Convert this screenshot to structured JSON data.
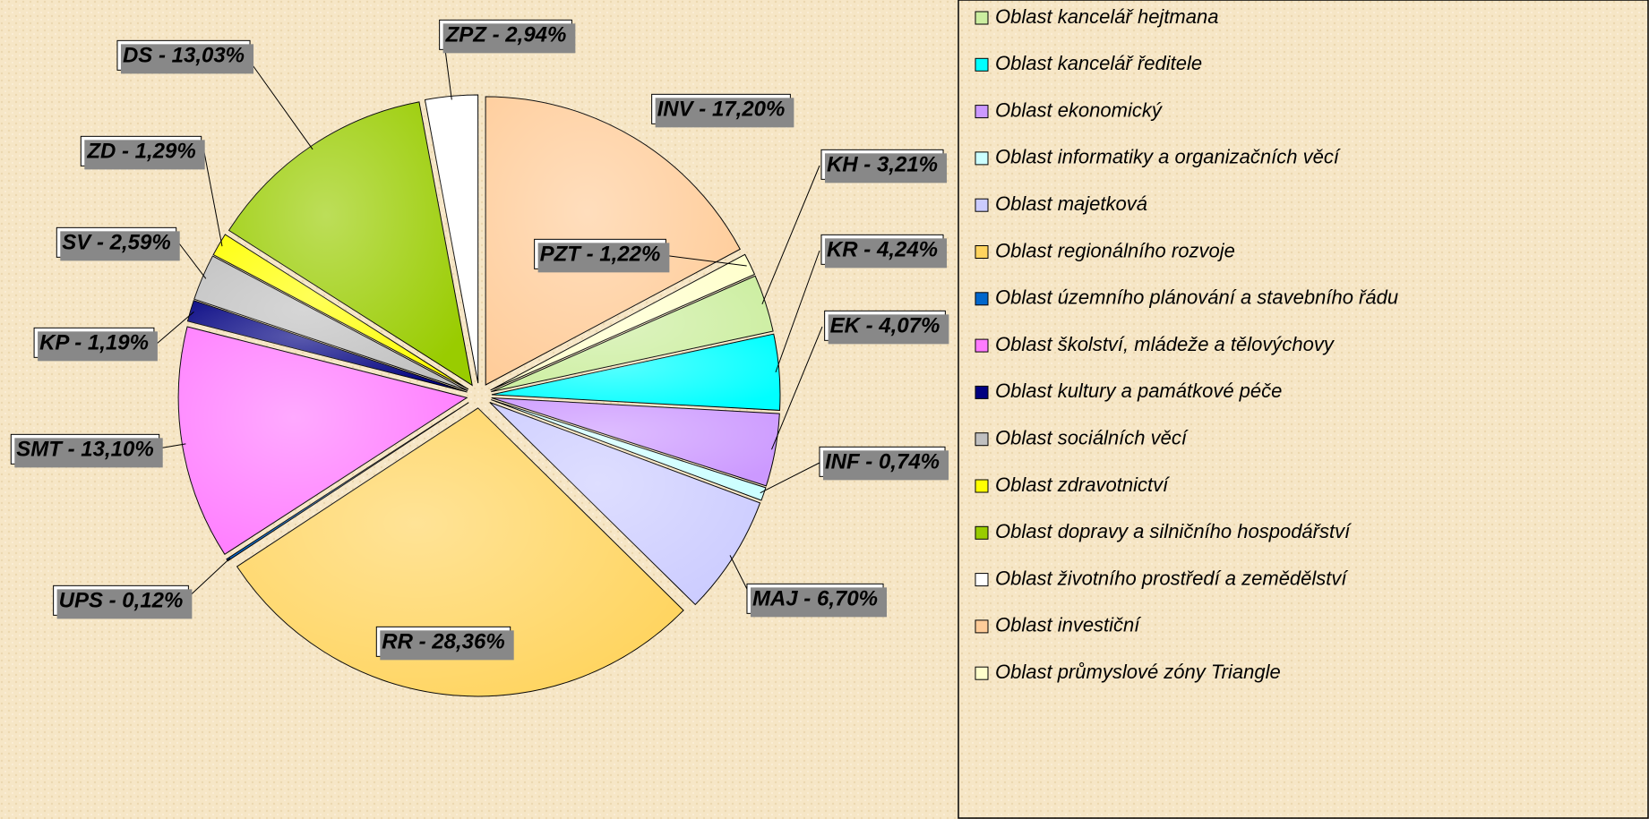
{
  "chart_data": {
    "type": "pie",
    "categories": [
      "Oblast kancelář hejtmana",
      "Oblast kancelář ředitele",
      "Oblast ekonomický",
      "Oblast informatiky a organizačních věcí",
      "Oblast majetková",
      "Oblast regionálního rozvoje",
      "Oblast územního plánování a stavebního řádu",
      "Oblast školství, mládeže a tělovýchovy",
      "Oblast kultury a památkové péče",
      "Oblast sociálních věcí",
      "Oblast zdravotnictví",
      "Oblast dopravy a silničního hospodářství",
      "Oblast životního prostředí a zemědělství",
      "Oblast investiční",
      "Oblast průmyslové zóny Triangle"
    ],
    "values": [
      3.21,
      4.24,
      4.07,
      0.74,
      6.7,
      28.36,
      0.12,
      13.1,
      1.19,
      2.59,
      1.29,
      13.03,
      2.94,
      17.2,
      1.22
    ],
    "value_labels": [
      "KH - 3,21%",
      "KR - 4,24%",
      "EK - 4,07%",
      "INF - 0,74%",
      "MAJ - 6,70%",
      "RR - 28,36%",
      "UPS - 0,12%",
      "SMT - 13,10%",
      "KP - 1,19%",
      "SV - 2,59%",
      "ZD - 1,29%",
      "DS - 13,03%",
      "ZPZ - 2,94%",
      "INV - 17,20%",
      "PZT - 1,22%"
    ],
    "colors": [
      "#cceea0",
      "#00ffff",
      "#cc99ff",
      "#ccffff",
      "#ccccff",
      "#ffd45e",
      "#0066cc",
      "#ff7bff",
      "#000080",
      "#c0c0c0",
      "#ffff00",
      "#99cc00",
      "#ffffff",
      "#ffcc99",
      "#ffffcc"
    ],
    "legend": "right"
  }
}
